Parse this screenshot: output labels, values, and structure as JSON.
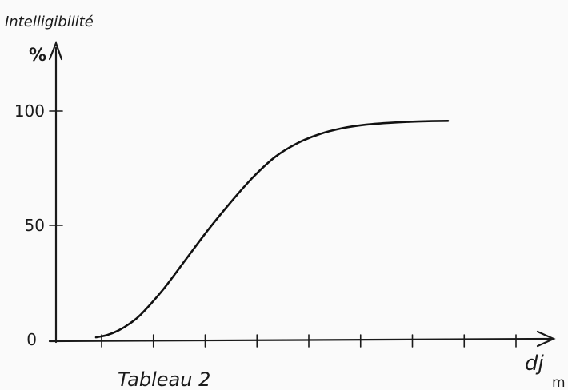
{
  "chart_data": {
    "type": "line",
    "title": "Tableau 2",
    "ylabel": "Intelligibilité",
    "yunit": "%",
    "xlabel": "dj",
    "xunit": "m",
    "ylim": [
      0,
      100
    ],
    "yticks": [
      "0",
      "50",
      "100"
    ],
    "x_tick_count": 9,
    "grid": false,
    "legend": "none",
    "series": [
      {
        "x": [
          0,
          0.25,
          0.5,
          0.75,
          1.0,
          1.5,
          2.0,
          2.5,
          3.0,
          3.5,
          4.0,
          4.5,
          5.0,
          5.5,
          6.0,
          6.5,
          7.0,
          7.5,
          7.85
        ],
        "values": [
          1,
          2,
          4,
          7,
          11,
          22,
          35,
          48,
          60,
          71,
          80,
          86,
          90,
          92.5,
          94,
          94.8,
          95.3,
          95.6,
          95.7
        ]
      }
    ]
  }
}
